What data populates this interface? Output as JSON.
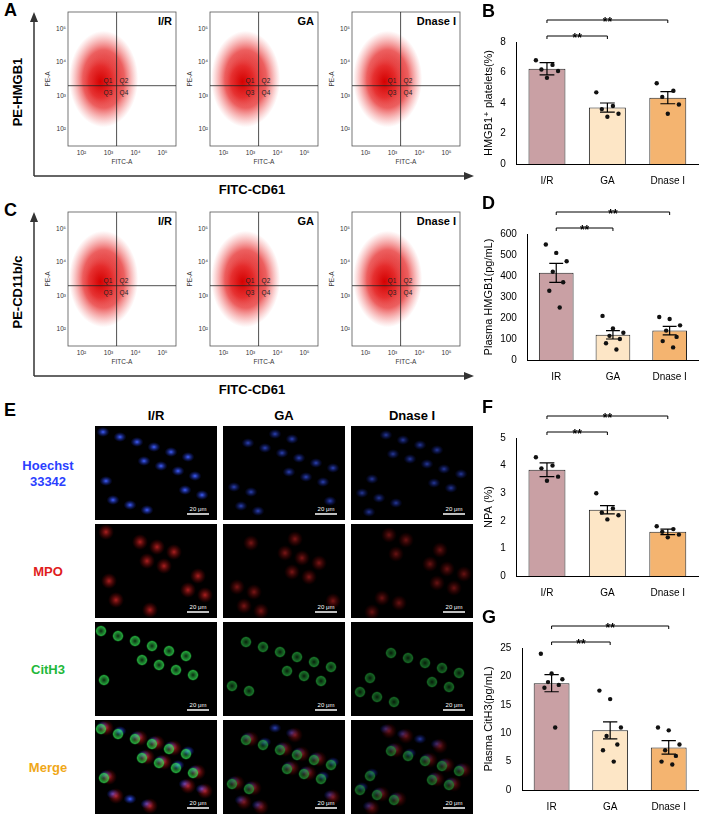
{
  "flow_panels": [
    {
      "panel": "A",
      "y_label": "PE-HMGB1",
      "x_label": "FITC-CD61",
      "inner_y_label": "PE-A",
      "inner_x_label": "FITC-A",
      "axis_ticks": [
        "10²",
        "10³",
        "10⁴",
        "10⁵"
      ],
      "quadrants": [
        "Q1",
        "Q2",
        "Q3",
        "Q4"
      ],
      "groups": [
        "I/R",
        "GA",
        "Dnase I"
      ]
    },
    {
      "panel": "C",
      "y_label": "PE-CD11b/c",
      "x_label": "FITC-CD61",
      "inner_y_label": "PE-A",
      "inner_x_label": "FITC-A",
      "axis_ticks": [
        "10²",
        "10³",
        "10⁴",
        "10⁵"
      ],
      "quadrants": [
        "Q1",
        "Q2",
        "Q3",
        "Q4"
      ],
      "groups": [
        "I/R",
        "GA",
        "Dnase I"
      ]
    }
  ],
  "image_panel": {
    "panel": "E",
    "groups": [
      "I/R",
      "GA",
      "Dnase I"
    ],
    "rows": [
      {
        "label": "Hoechst 33342",
        "color": "#2b3fff"
      },
      {
        "label": "MPO",
        "color": "#e01c1c"
      },
      {
        "label": "CitH3",
        "color": "#22b83a"
      },
      {
        "label": "Merge",
        "color": "#f0a818"
      }
    ],
    "scale_bar": "20 μm"
  },
  "chart_data": [
    {
      "panel": "B",
      "type": "bar",
      "categories": [
        "I/R",
        "GA",
        "Dnase I"
      ],
      "y_label": "HMGB1⁺ platelets(%)",
      "values": [
        6.25,
        3.7,
        4.35
      ],
      "error": [
        0.4,
        0.3,
        0.4
      ],
      "points": [
        [
          6.8,
          6.5,
          6.2,
          6.1,
          5.65
        ],
        [
          4.7,
          3.8,
          3.6,
          3.3,
          3.1
        ],
        [
          5.3,
          4.8,
          4.4,
          3.9,
          3.3
        ]
      ],
      "colors": [
        "#c9a0a4",
        "#fde6c6",
        "#f4b470"
      ],
      "ylim": [
        0,
        8
      ],
      "yticks": [
        0,
        2,
        4,
        6,
        8
      ],
      "grid": false,
      "comparisons": [
        {
          "pair": [
            0,
            1
          ],
          "label": "**"
        },
        {
          "pair": [
            0,
            2
          ],
          "label": "**"
        }
      ]
    },
    {
      "panel": "D",
      "type": "bar",
      "categories": [
        "IR",
        "GA",
        "Dnase I"
      ],
      "y_label": "Plasma HMGB1(pg/mL)",
      "values": [
        415,
        120,
        140
      ],
      "error": [
        45,
        20,
        20
      ],
      "points": [
        [
          550,
          510,
          470,
          420,
          370,
          330,
          250
        ],
        [
          210,
          150,
          130,
          115,
          100,
          80,
          50
        ],
        [
          205,
          195,
          165,
          140,
          110,
          90,
          60
        ]
      ],
      "colors": [
        "#c9a0a4",
        "#fde6c6",
        "#f4b470"
      ],
      "ylim": [
        0,
        600
      ],
      "yticks": [
        0,
        100,
        200,
        300,
        400,
        500,
        600
      ],
      "grid": false,
      "comparisons": [
        {
          "pair": [
            0,
            1
          ],
          "label": "**"
        },
        {
          "pair": [
            0,
            2
          ],
          "label": "**"
        }
      ]
    },
    {
      "panel": "F",
      "type": "bar",
      "categories": [
        "I/R",
        "GA",
        "Dnase I"
      ],
      "y_label": "NPA (%)",
      "values": [
        3.85,
        2.4,
        1.6
      ],
      "error": [
        0.25,
        0.15,
        0.1
      ],
      "points": [
        [
          4.3,
          4.0,
          3.9,
          3.6,
          3.45
        ],
        [
          3.0,
          2.45,
          2.3,
          2.2,
          2.05
        ],
        [
          1.8,
          1.7,
          1.6,
          1.5,
          1.4
        ]
      ],
      "colors": [
        "#c9a0a4",
        "#fde6c6",
        "#f4b470"
      ],
      "ylim": [
        0,
        5
      ],
      "yticks": [
        0,
        1,
        2,
        3,
        4,
        5
      ],
      "grid": false,
      "comparisons": [
        {
          "pair": [
            0,
            1
          ],
          "label": "**"
        },
        {
          "pair": [
            0,
            2
          ],
          "label": "**"
        }
      ]
    },
    {
      "panel": "G",
      "type": "bar",
      "categories": [
        "IR",
        "GA",
        "Dnase I"
      ],
      "y_label": "Plasma CitH3(pg/mL)",
      "values": [
        18.8,
        10.5,
        7.5
      ],
      "error": [
        1.5,
        1.5,
        1.2
      ],
      "points": [
        [
          24,
          20.5,
          19.5,
          19,
          18.5,
          18,
          11
        ],
        [
          17.5,
          16,
          11,
          9.5,
          8,
          7,
          5
        ],
        [
          11,
          10.5,
          8,
          7,
          6,
          5,
          4.5
        ]
      ],
      "colors": [
        "#c9a0a4",
        "#fde6c6",
        "#f4b470"
      ],
      "ylim": [
        0,
        25
      ],
      "yticks": [
        0,
        5,
        10,
        15,
        20,
        25
      ],
      "grid": false,
      "comparisons": [
        {
          "pair": [
            0,
            1
          ],
          "label": "**"
        },
        {
          "pair": [
            0,
            2
          ],
          "label": "**"
        }
      ]
    }
  ]
}
